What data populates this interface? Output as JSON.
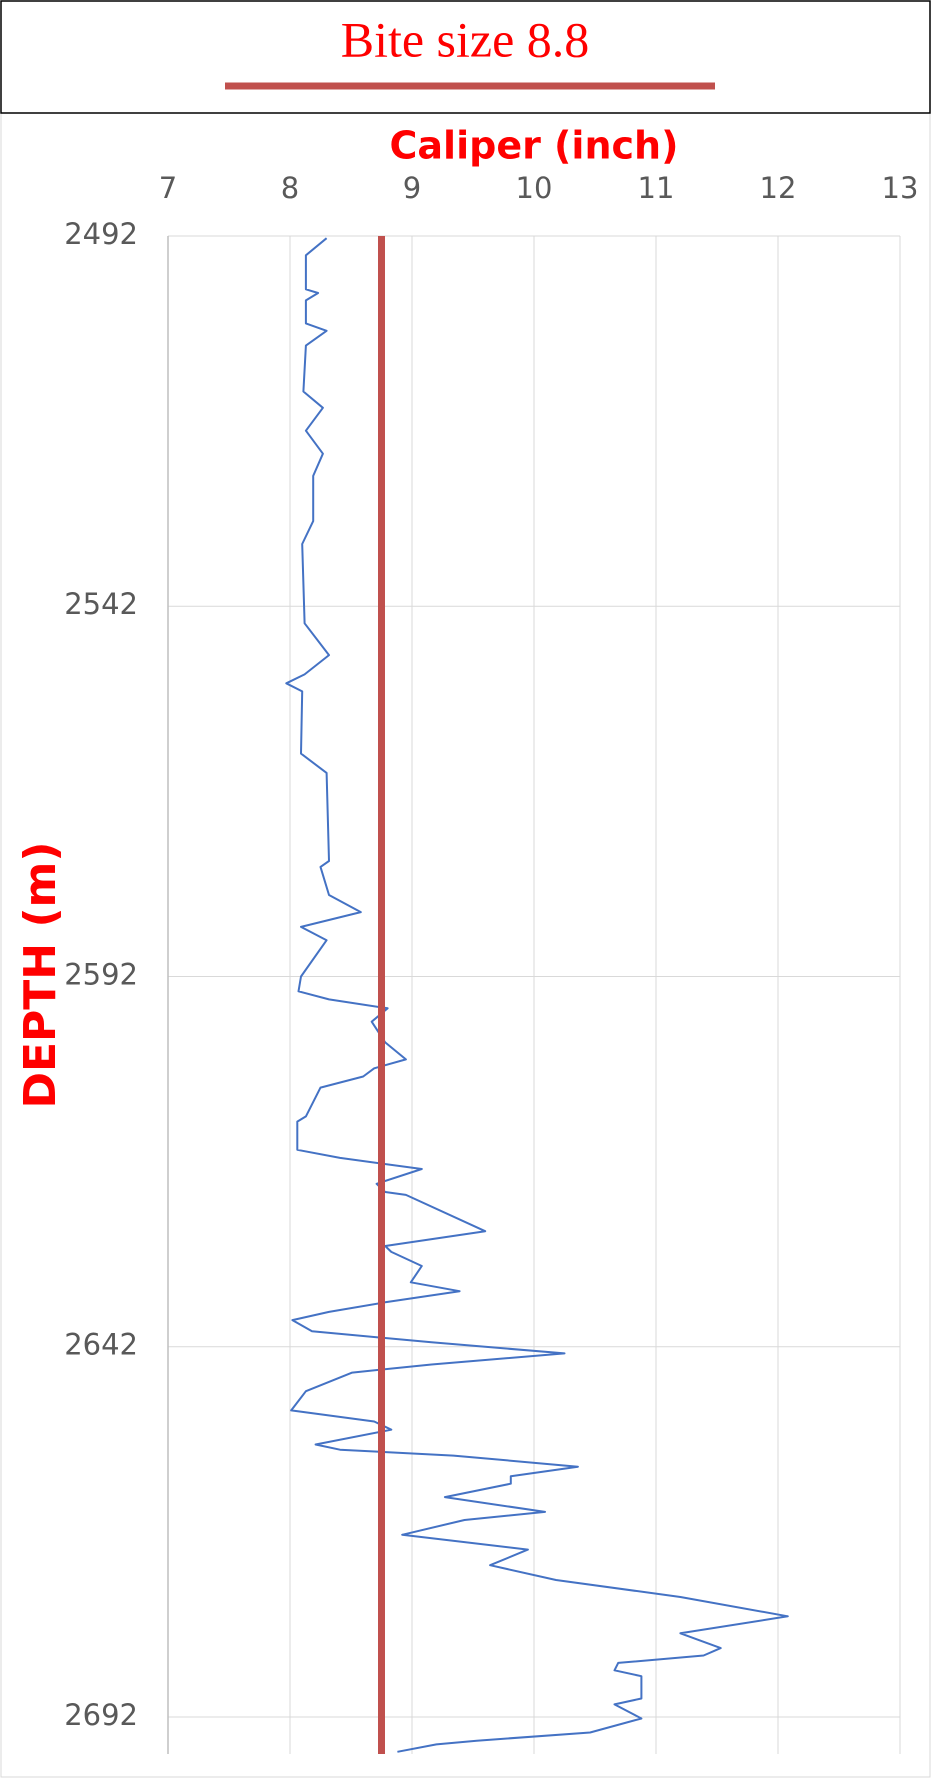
{
  "chart_data": {
    "type": "line",
    "x_label": "Caliper (inch)",
    "y_label": "DEPTH (m)",
    "xlim": [
      7,
      13
    ],
    "xticks": [
      7,
      8,
      9,
      10,
      11,
      12,
      13
    ],
    "ylim": [
      2492,
      2697
    ],
    "yticks": [
      2492,
      2542,
      2592,
      2642,
      2692
    ],
    "y_inverted": true,
    "x_axis_position": "top",
    "grid": true,
    "series": [
      {
        "color": "#4472c4",
        "x": [
          8.3,
          8.13,
          8.13,
          8.23,
          8.13,
          8.13,
          8.3,
          8.13,
          8.11,
          8.27,
          8.13,
          8.27,
          8.19,
          8.19,
          8.1,
          8.12,
          8.32,
          8.12,
          7.97,
          8.1,
          8.09,
          8.3,
          8.32,
          8.25,
          8.32,
          8.58,
          8.09,
          8.3,
          8.09,
          8.07,
          8.32,
          8.8,
          8.67,
          8.78,
          8.95,
          8.69,
          8.6,
          8.25,
          8.13,
          8.06,
          8.06,
          8.41,
          9.08,
          8.71,
          8.78,
          8.95,
          9.6,
          8.78,
          8.83,
          9.08,
          8.99,
          9.39,
          8.78,
          8.32,
          8.02,
          8.18,
          9.16,
          10.25,
          9.16,
          8.51,
          8.13,
          8.01,
          8.69,
          8.83,
          8.21,
          8.41,
          9.34,
          10.36,
          9.81,
          9.81,
          9.27,
          10.09,
          9.43,
          8.92,
          9.95,
          9.64,
          10.18,
          11.2,
          12.08,
          11.2,
          11.53,
          11.39,
          10.69,
          10.66,
          10.88,
          10.88,
          10.66,
          10.88,
          10.46,
          9.53,
          9.2,
          8.88
        ],
        "y": [
          2492.3,
          2494.6,
          2499.2,
          2499.7,
          2500.7,
          2503.8,
          2504.8,
          2506.8,
          2513,
          2515.2,
          2518.3,
          2521.4,
          2524.4,
          2530.5,
          2533.6,
          2544.3,
          2548.6,
          2551.2,
          2552.4,
          2553.5,
          2561.9,
          2564.5,
          2576.4,
          2577.2,
          2581,
          2583.3,
          2585.3,
          2587.1,
          2592,
          2594,
          2595.1,
          2596.3,
          2598.1,
          2600.9,
          2603.2,
          2604.4,
          2605.5,
          2607,
          2610.9,
          2611.6,
          2615.4,
          2616.5,
          2618,
          2620,
          2621.1,
          2621.5,
          2626.4,
          2628.4,
          2629.2,
          2631.1,
          2633.3,
          2634.5,
          2636,
          2637.3,
          2638.4,
          2639.9,
          2641.4,
          2642.9,
          2644.4,
          2645.5,
          2648,
          2650.6,
          2652.1,
          2653.2,
          2655.2,
          2655.9,
          2656.7,
          2658.2,
          2659.5,
          2660.5,
          2662.3,
          2664.3,
          2665.4,
          2667.4,
          2669.4,
          2671.5,
          2673.5,
          2675.8,
          2678.4,
          2680.7,
          2682.7,
          2683.7,
          2684.7,
          2685.7,
          2686.5,
          2689.5,
          2690.3,
          2692.2,
          2694.1,
          2695.2,
          2695.7,
          2696.7
        ]
      },
      {
        "name": "Bite size 8.8",
        "color": "#c0504d",
        "x": [
          8.75,
          8.75
        ],
        "y": [
          2492,
          2697
        ]
      }
    ]
  }
}
